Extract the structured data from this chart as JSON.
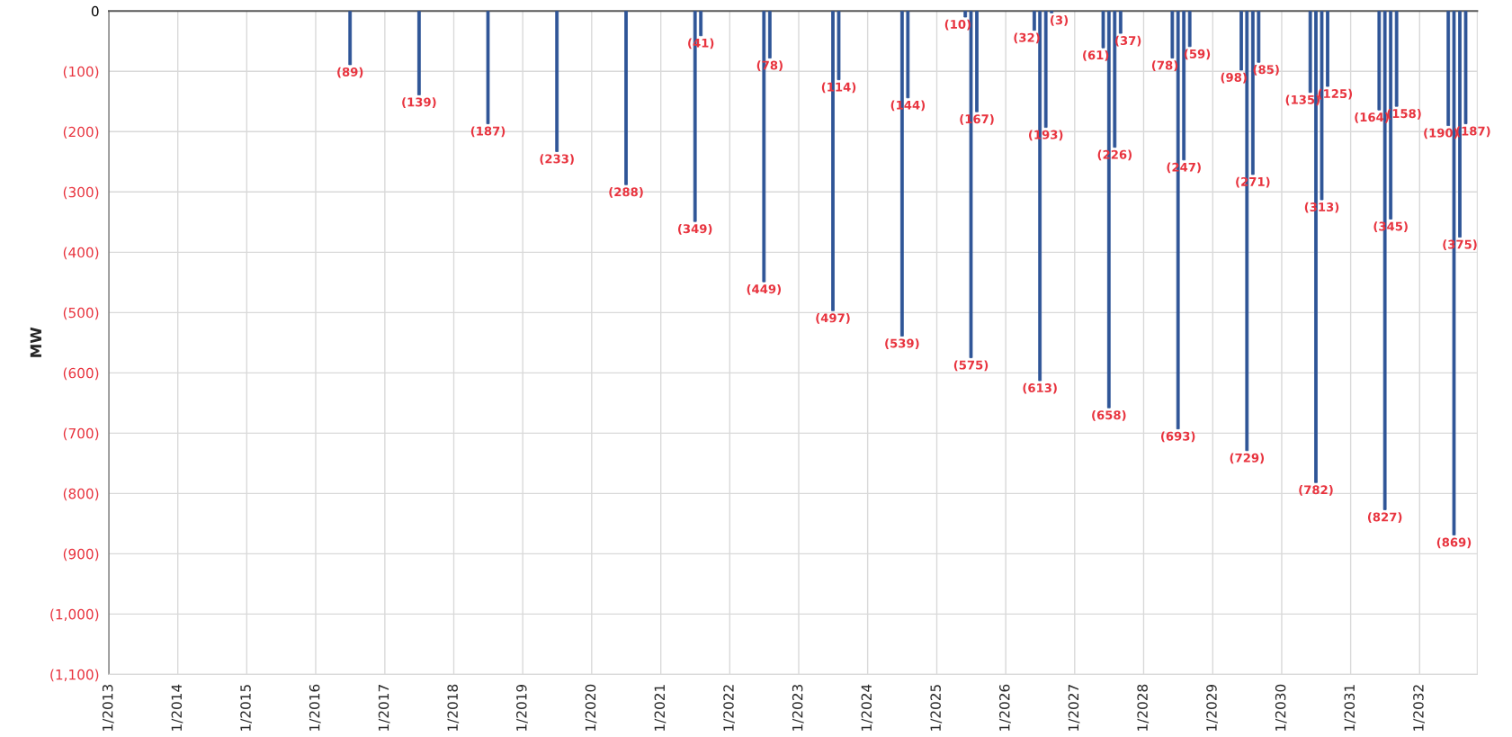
{
  "chart_data": {
    "type": "bar",
    "ylabel": "MW",
    "xlim": [
      "2013-01",
      "2032-11"
    ],
    "xticks": [
      {
        "value": "2013-01",
        "label": "1/2013"
      },
      {
        "value": "2014-01",
        "label": "1/2014"
      },
      {
        "value": "2015-01",
        "label": "1/2015"
      },
      {
        "value": "2016-01",
        "label": "1/2016"
      },
      {
        "value": "2017-01",
        "label": "1/2017"
      },
      {
        "value": "2018-01",
        "label": "1/2018"
      },
      {
        "value": "2019-01",
        "label": "1/2019"
      },
      {
        "value": "2020-01",
        "label": "1/2020"
      },
      {
        "value": "2021-01",
        "label": "1/2021"
      },
      {
        "value": "2022-01",
        "label": "1/2022"
      },
      {
        "value": "2023-01",
        "label": "1/2023"
      },
      {
        "value": "2024-01",
        "label": "1/2024"
      },
      {
        "value": "2025-01",
        "label": "1/2025"
      },
      {
        "value": "2026-01",
        "label": "1/2026"
      },
      {
        "value": "2027-01",
        "label": "1/2027"
      },
      {
        "value": "2028-01",
        "label": "1/2028"
      },
      {
        "value": "2029-01",
        "label": "1/2029"
      },
      {
        "value": "2030-01",
        "label": "1/2030"
      },
      {
        "value": "2031-01",
        "label": "1/2031"
      },
      {
        "value": "2032-01",
        "label": "1/2032"
      }
    ],
    "ylim": [
      -1100,
      0
    ],
    "yticks": [
      0,
      {
        "value": -100,
        "label": "(100)"
      },
      {
        "value": -200,
        "label": "(200)"
      },
      {
        "value": -300,
        "label": "(300)"
      },
      {
        "value": -400,
        "label": "(400)"
      },
      {
        "value": -500,
        "label": "(500)"
      },
      {
        "value": -600,
        "label": "(600)"
      },
      {
        "value": -700,
        "label": "(700)"
      },
      {
        "value": -800,
        "label": "(800)"
      },
      {
        "value": -900,
        "label": "(900)"
      },
      {
        "value": -1000,
        "label": "(1,000)"
      },
      {
        "value": -1100,
        "label": "(1,100)"
      }
    ],
    "grid": true,
    "series": [
      {
        "color": "#2f5597",
        "x": [
          "2016-07",
          "2017-07",
          "2018-07",
          "2019-07",
          "2020-07",
          "2021-07",
          "2021-08",
          "2022-07",
          "2022-08",
          "2023-07",
          "2023-08",
          "2024-07",
          "2024-08",
          "2025-06",
          "2025-07",
          "2025-08",
          "2026-06",
          "2026-07",
          "2026-08",
          "2026-09",
          "2027-06",
          "2027-07",
          "2027-08",
          "2027-09",
          "2028-06",
          "2028-07",
          "2028-08",
          "2028-09",
          "2029-06",
          "2029-07",
          "2029-08",
          "2029-09",
          "2030-06",
          "2030-07",
          "2030-08",
          "2030-09",
          "2031-06",
          "2031-07",
          "2031-08",
          "2031-09",
          "2032-06",
          "2032-07",
          "2032-08",
          "2032-09"
        ],
        "values": [
          -89,
          -139,
          -187,
          -233,
          -288,
          -349,
          -41,
          -449,
          -78,
          -497,
          -114,
          -539,
          -144,
          -10,
          -575,
          -167,
          -32,
          -613,
          -193,
          -3,
          -61,
          -658,
          -226,
          -37,
          -78,
          -693,
          -247,
          -59,
          -98,
          -729,
          -271,
          -85,
          -135,
          -782,
          -313,
          -125,
          -164,
          -827,
          -345,
          -158,
          -190,
          -869,
          -375,
          -187
        ],
        "value_labels": [
          "(89)",
          "(139)",
          "(187)",
          "(233)",
          "(288)",
          "(349)",
          "(41)",
          "(449)",
          "(78)",
          "(497)",
          "(114)",
          "(539)",
          "(144)",
          "(10)",
          "(575)",
          "(167)",
          "(32)",
          "(613)",
          "(193)",
          "(3)",
          "(61)",
          "(658)",
          "(226)",
          "(37)",
          "(78)",
          "(693)",
          "(247)",
          "(59)",
          "(98)",
          "(729)",
          "(271)",
          "(85)",
          "(135)",
          "(782)",
          "(313)",
          "(125)",
          "(164)",
          "(827)",
          "(345)",
          "(158)",
          "(190)",
          "(869)",
          "(375)",
          "(187)"
        ]
      }
    ]
  }
}
